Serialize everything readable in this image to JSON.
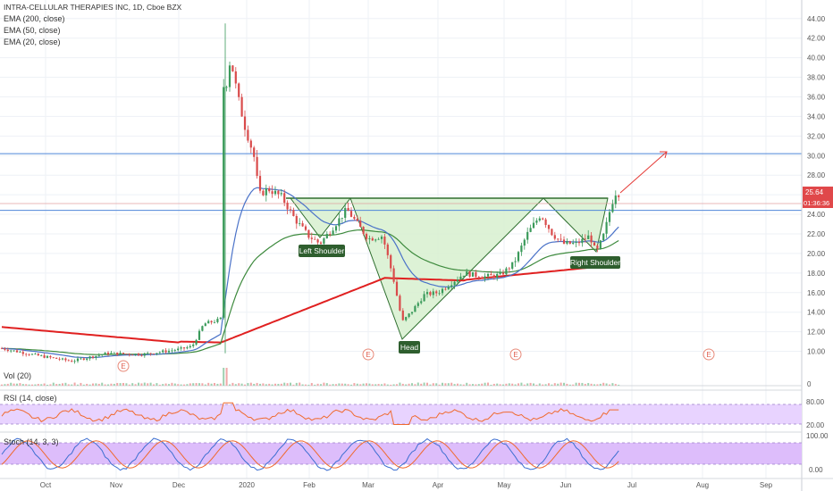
{
  "legend": {
    "title": "INTRA-CELLULAR THERAPIES INC, 1D, Cboe BZX",
    "ema200": "EMA (200, close)",
    "ema50": "EMA (50, close)",
    "ema20": "EMA (20, close)"
  },
  "panels": {
    "vol": "Vol (20)",
    "rsi": "RSI (14, close)",
    "stoch": "Stoch (14, 3, 3)"
  },
  "colors": {
    "up": "#3a9a5a",
    "down": "#d94b4b",
    "ema200": "#e02020",
    "ema50": "#3d8a3d",
    "ema20": "#4a72c8",
    "hline": "#4f86d9",
    "pattern_fill": "#d7f0cf",
    "pattern_line": "#2e6e2e",
    "arrow": "#e53935",
    "price_badge": "#e0484a",
    "rsi_band": "#e8d3ff",
    "stoch_band": "#ddbdfb"
  },
  "chart_data": {
    "type": "candlestick",
    "title": "INTRA-CELLULAR THERAPIES INC, 1D, Cboe BZX",
    "x_ticks": [
      "Oct",
      "Nov",
      "Dec",
      "2020",
      "Feb",
      "Mar",
      "Apr",
      "May",
      "Jun",
      "Jul",
      "Aug",
      "Sep"
    ],
    "y_ticks": [
      "44.00",
      "42.00",
      "40.00",
      "38.00",
      "36.00",
      "34.00",
      "32.00",
      "30.00",
      "28.00",
      "26.00",
      "24.00",
      "22.00",
      "20.00",
      "18.00",
      "16.00",
      "14.00",
      "12.00",
      "10.00"
    ],
    "ylim": [
      8.5,
      44.8
    ],
    "last_price": "25.64",
    "countdown": "01:36:36",
    "horizontal_levels": [
      30.2,
      25.1,
      24.4
    ],
    "earnings_marker": "E",
    "annotations": [
      "Left Shoulder",
      "Head",
      "Right Shoulder"
    ],
    "vol_ticks": [
      "0"
    ],
    "rsi_ticks": [
      "80.00",
      "20.00"
    ],
    "stoch_ticks": [
      "100.00",
      "0.00"
    ],
    "rsi_band": [
      70,
      30
    ],
    "stoch_band": [
      80,
      20
    ]
  }
}
